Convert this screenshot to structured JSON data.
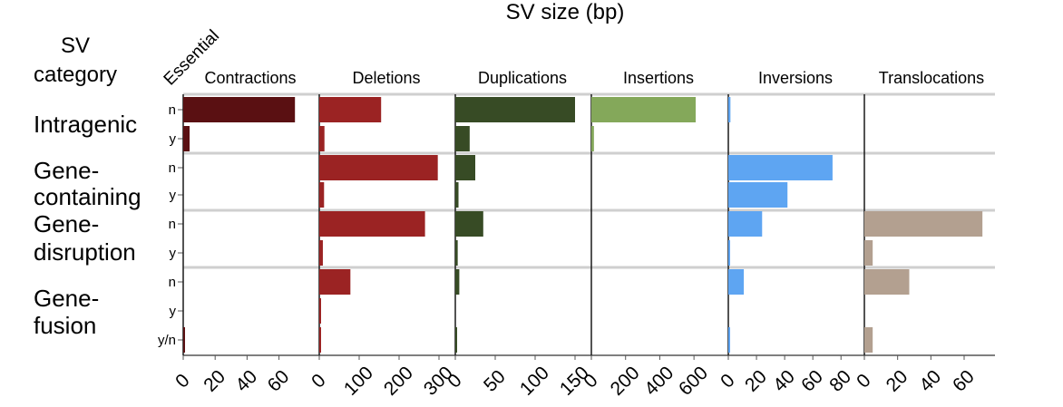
{
  "chart_data": {
    "type": "bar",
    "orientation": "horizontal",
    "title": "SV size (bp)",
    "row_axis_title": [
      "SV",
      "category"
    ],
    "essential_label": "Essential",
    "row_groups": [
      {
        "lines": [
          "Intragenic"
        ],
        "subrows": [
          "n",
          "y"
        ]
      },
      {
        "lines": [
          "Gene-",
          "containing"
        ],
        "subrows": [
          "n",
          "y"
        ]
      },
      {
        "lines": [
          "Gene-",
          "disruption"
        ],
        "subrows": [
          "n",
          "y"
        ]
      },
      {
        "lines": [
          "Gene-",
          "fusion"
        ],
        "subrows": [
          "n",
          "y",
          "y/n"
        ]
      }
    ],
    "panels": [
      {
        "name": "Contractions",
        "color": "#5a1012",
        "ylim": [
          0,
          75
        ],
        "ticks": [
          "0",
          "20",
          "40",
          "60"
        ],
        "tick_values": [
          0,
          20,
          40,
          60
        ],
        "values": [
          70,
          4,
          0,
          0,
          0,
          0,
          0,
          0,
          0.5
        ]
      },
      {
        "name": "Deletions",
        "color": "#9b2323",
        "ylim": [
          0,
          300
        ],
        "ticks": [
          "0",
          "100",
          "200",
          "300"
        ],
        "tick_values": [
          0,
          100,
          200,
          300
        ],
        "values": [
          155,
          13,
          297,
          12,
          265,
          9,
          78,
          1,
          3
        ]
      },
      {
        "name": "Duplications",
        "color": "#374b25",
        "ylim": [
          0,
          150
        ],
        "ticks": [
          "0",
          "50",
          "100",
          "150"
        ],
        "tick_values": [
          0,
          50,
          100,
          150
        ],
        "values": [
          150,
          18,
          25,
          4,
          35,
          3,
          5,
          0,
          1
        ]
      },
      {
        "name": "Insertions",
        "color": "#84a85a",
        "ylim": [
          0,
          700
        ],
        "ticks": [
          "0",
          "200",
          "400",
          "600"
        ],
        "tick_values": [
          0,
          200,
          400,
          600
        ],
        "values": [
          610,
          15,
          0,
          0,
          0,
          0,
          0,
          0,
          0
        ]
      },
      {
        "name": "Inversions",
        "color": "#5ea5f2",
        "ylim": [
          0,
          85
        ],
        "ticks": [
          "0",
          "20",
          "40",
          "60",
          "80"
        ],
        "tick_values": [
          0,
          20,
          40,
          60,
          80
        ],
        "values": [
          1.5,
          0,
          74,
          42,
          24,
          1,
          11,
          0,
          1
        ]
      },
      {
        "name": "Translocations",
        "color": "#b3a090",
        "ylim": [
          0,
          72
        ],
        "ticks": [
          "0",
          "20",
          "40",
          "60"
        ],
        "tick_values": [
          0,
          20,
          40,
          60
        ],
        "values": [
          0,
          0,
          0,
          0,
          71,
          5,
          27,
          0,
          5
        ]
      }
    ]
  }
}
